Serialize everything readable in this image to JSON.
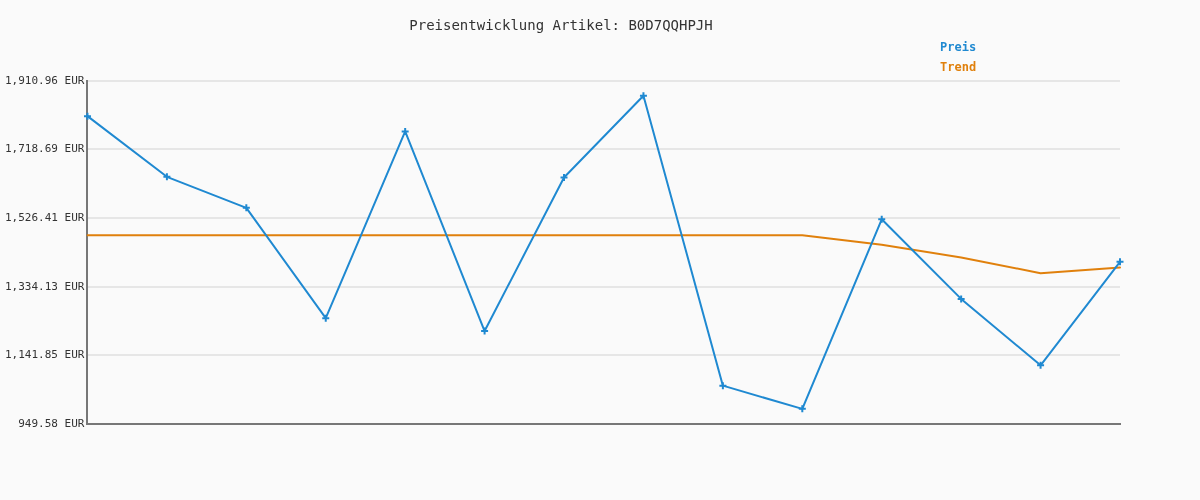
{
  "chart_data": {
    "type": "line",
    "title": "Preisentwicklung Artikel: B0D7QQHPJH",
    "categories": [
      null,
      null,
      null,
      null,
      null,
      null,
      null,
      null,
      null,
      null,
      null,
      null,
      null,
      null
    ],
    "series": [
      {
        "name": "Preis",
        "color": "#1f89d1",
        "marker": "cross",
        "values": [
          1812,
          1642,
          1555,
          1246,
          1769,
          1210,
          1640,
          1869,
          1057,
          992,
          1523,
          1300,
          1114,
          1404
        ]
      },
      {
        "name": "Trend",
        "color": "#e0800c",
        "marker": "none",
        "values": [
          1478,
          1478,
          1478,
          1478,
          1478,
          1478,
          1478,
          1478,
          1478,
          1478,
          1452,
          1416,
          1372,
          1388
        ]
      }
    ],
    "ylim": [
      949.58,
      1910.96
    ],
    "yticks": [
      {
        "value": 949.58,
        "label": "949.58 EUR"
      },
      {
        "value": 1141.85,
        "label": "1,141.85 EUR"
      },
      {
        "value": 1334.13,
        "label": "1,334.13 EUR"
      },
      {
        "value": 1526.41,
        "label": "1,526.41 EUR"
      },
      {
        "value": 1718.69,
        "label": "1,718.69 EUR"
      },
      {
        "value": 1910.96,
        "label": "1,910.96 EUR"
      }
    ],
    "grid": "y",
    "legend": "top right",
    "tick_labels": "y",
    "line_style": "solid"
  }
}
